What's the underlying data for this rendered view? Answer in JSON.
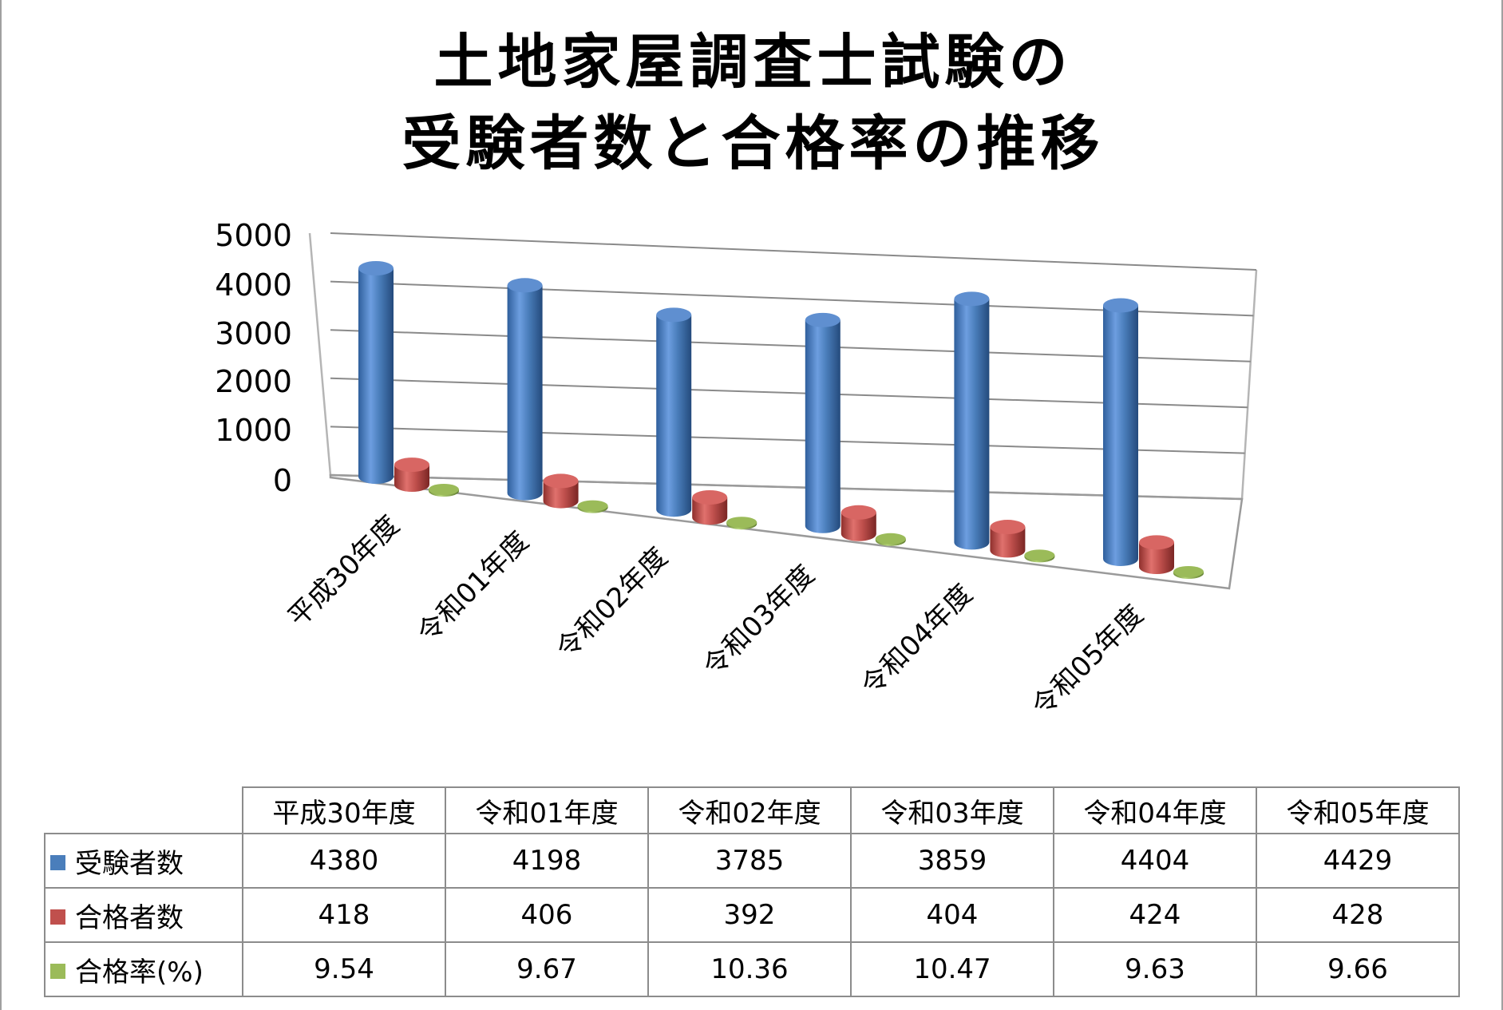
{
  "title": [
    "土地家屋調査士試験の",
    "受験者数と合格率の推移"
  ],
  "chart_data": {
    "type": "bar",
    "projection": "3d-column",
    "title": "土地家屋調査士試験の受験者数と合格率の推移",
    "categories": [
      "平成30年度",
      "令和01年度",
      "令和02年度",
      "令和03年度",
      "令和04年度",
      "令和05年度"
    ],
    "series": [
      {
        "name": "受験者数",
        "values": [
          4380,
          4198,
          3785,
          3859,
          4404,
          4429
        ],
        "color": "#4a7ebb"
      },
      {
        "name": "合格者数",
        "values": [
          418,
          406,
          392,
          404,
          424,
          428
        ],
        "color": "#c0504d"
      },
      {
        "name": "合格率(%)",
        "values": [
          9.54,
          9.67,
          10.36,
          10.47,
          9.63,
          9.66
        ],
        "color": "#9bbb59"
      }
    ],
    "yticks": [
      "0",
      "1000",
      "2000",
      "3000",
      "4000",
      "5000"
    ],
    "ylim": [
      0,
      5000
    ],
    "grid": true,
    "legend": "data-table-below"
  },
  "table": {
    "headers": [
      "平成30年度",
      "令和01年度",
      "令和02年度",
      "令和03年度",
      "令和04年度",
      "令和05年度"
    ],
    "rows": [
      {
        "label": "受験者数",
        "color": "#4a7ebb",
        "cells": [
          "4380",
          "4198",
          "3785",
          "3859",
          "4404",
          "4429"
        ]
      },
      {
        "label": "合格者数",
        "color": "#c0504d",
        "cells": [
          "418",
          "406",
          "392",
          "404",
          "424",
          "428"
        ]
      },
      {
        "label": "合格率(%)",
        "color": "#9bbb59",
        "cells": [
          "9.54",
          "9.67",
          "10.36",
          "10.47",
          "9.63",
          "9.66"
        ]
      }
    ]
  }
}
